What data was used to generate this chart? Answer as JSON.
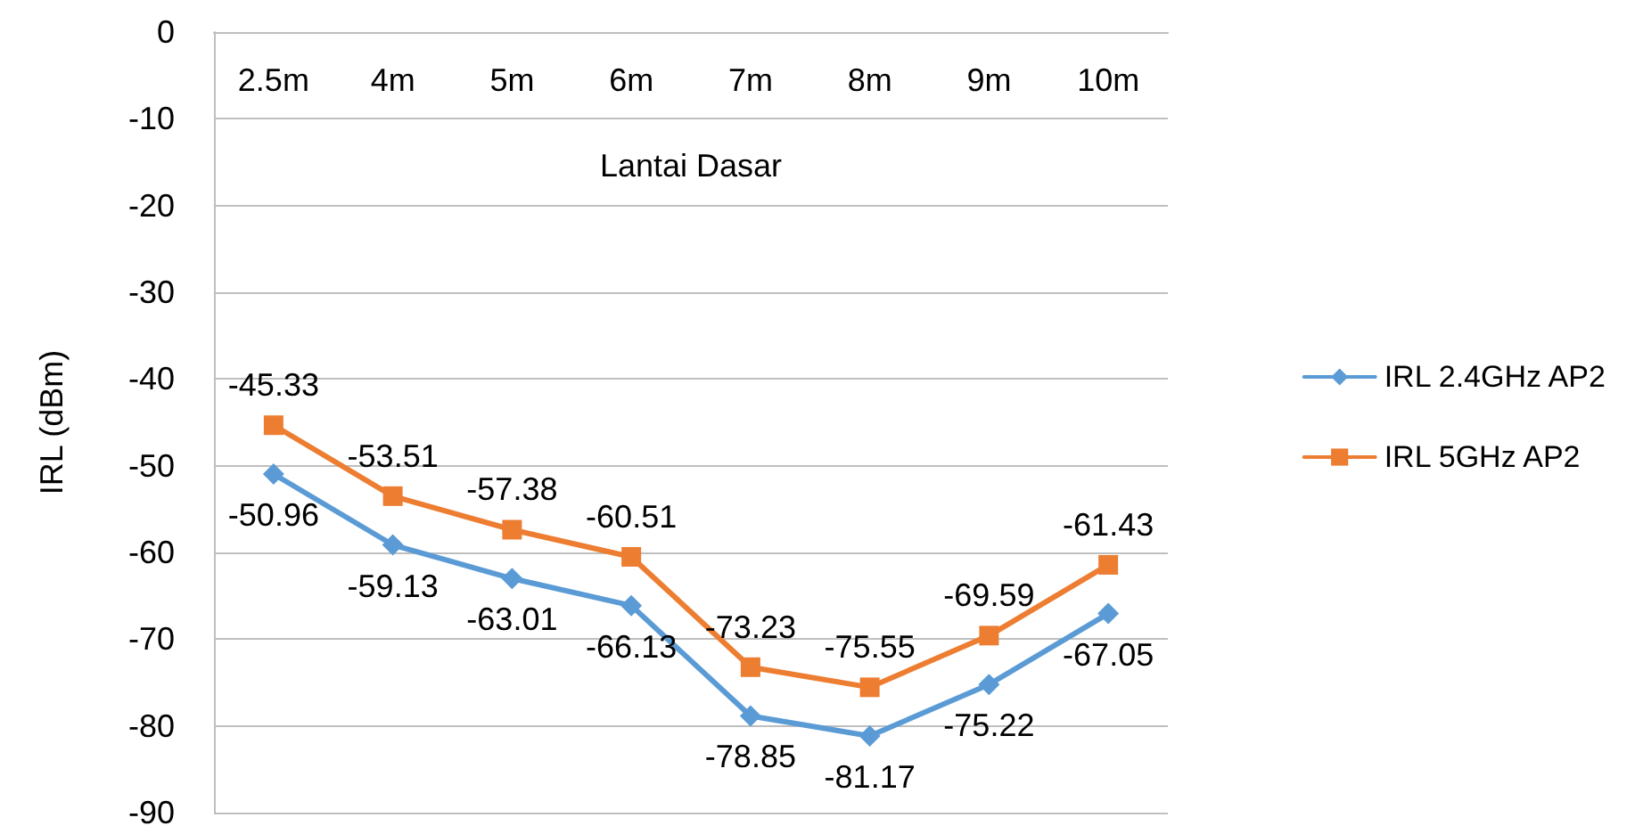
{
  "chart_data": {
    "type": "line",
    "xlabel": "Lantai Dasar",
    "ylabel": "IRL (dBm)",
    "categories": [
      "2.5m",
      "4m",
      "5m",
      "6m",
      "7m",
      "8m",
      "9m",
      "10m"
    ],
    "series": [
      {
        "name": "IRL 2.4GHz AP2",
        "color": "#5b9bd5",
        "marker": "diamond",
        "values": [
          -50.96,
          -59.13,
          -63.01,
          -66.13,
          -78.85,
          -81.17,
          -75.22,
          -67.05
        ]
      },
      {
        "name": "IRL 5GHz AP2",
        "color": "#ed7d31",
        "marker": "square",
        "values": [
          -45.33,
          -53.51,
          -57.38,
          -60.51,
          -73.23,
          -75.55,
          -69.59,
          -61.43
        ]
      }
    ],
    "ylim": [
      -90,
      0
    ],
    "yticks": [
      0,
      -10,
      -20,
      -30,
      -40,
      -50,
      -60,
      -70,
      -80,
      -90
    ],
    "grid": "y",
    "legend": "right",
    "data_labels": true,
    "line_style": "solid"
  }
}
